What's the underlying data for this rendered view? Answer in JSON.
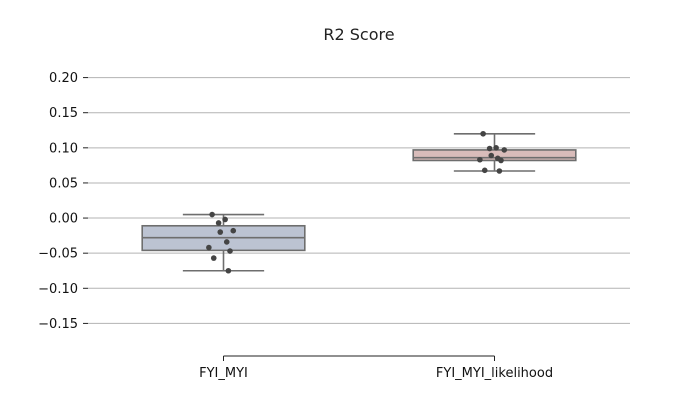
{
  "chart_data": {
    "type": "box",
    "title": "R2 Score",
    "xlabel": "",
    "ylabel": "",
    "ylim": [
      -0.185,
      0.235
    ],
    "yticks": [
      0.2,
      0.15,
      0.1,
      0.05,
      0.0,
      -0.05,
      -0.1,
      -0.15
    ],
    "ytick_labels": [
      "0.20",
      "0.15",
      "0.10",
      "0.05",
      "0.00",
      "−0.05",
      "−0.10",
      "−0.15"
    ],
    "grid": "horizontal",
    "categories": [
      "FYI_MYI",
      "FYI_MYI_likelihood"
    ],
    "boxes": [
      {
        "category": "FYI_MYI",
        "color": "#bcc3d2",
        "whisker_low": -0.075,
        "q1": -0.046,
        "median": -0.028,
        "q3": -0.011,
        "whisker_high": 0.005,
        "points": [
          0.005,
          -0.002,
          -0.007,
          -0.018,
          -0.02,
          -0.034,
          -0.042,
          -0.047,
          -0.057,
          -0.075
        ]
      },
      {
        "category": "FYI_MYI_likelihood",
        "color": "#d9bcba",
        "whisker_low": 0.067,
        "q1": 0.082,
        "median": 0.086,
        "q3": 0.097,
        "whisker_high": 0.12,
        "points": [
          0.12,
          0.1,
          0.099,
          0.097,
          0.089,
          0.085,
          0.083,
          0.082,
          0.068,
          0.067
        ]
      }
    ]
  }
}
